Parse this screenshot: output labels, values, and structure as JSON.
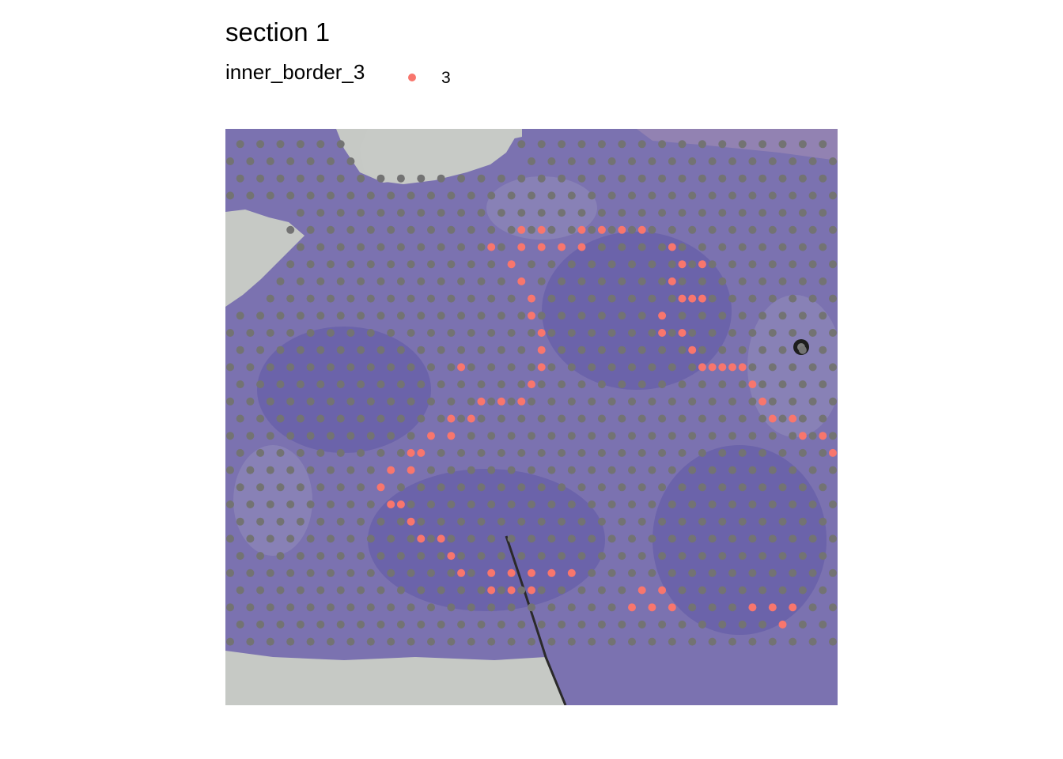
{
  "chart_data": {
    "type": "scatter",
    "title": "section 1",
    "legend": {
      "title": "inner_border_3",
      "entries": [
        {
          "label": "3",
          "color": "#F8766D"
        }
      ],
      "placement": "top-left"
    },
    "grid": false,
    "background": "tissue-image",
    "colors": {
      "tissue": "#7c73b0",
      "tissue_dark": "#5d55a8",
      "glass": "#c4c8c4",
      "background_spot": "#737373",
      "highlight_spot": "#F8766D"
    },
    "series": [
      {
        "name": "3",
        "points": [
          [
            -0.5,
            -6
          ],
          [
            0.5,
            -6
          ],
          [
            2.5,
            -6
          ],
          [
            3.5,
            -6
          ],
          [
            4.5,
            -6
          ],
          [
            5.5,
            -6
          ],
          [
            -2,
            -5
          ],
          [
            -0.5,
            -5
          ],
          [
            0.5,
            -5
          ],
          [
            1.5,
            -5
          ],
          [
            2.5,
            -5
          ],
          [
            7,
            -5
          ],
          [
            -1,
            -4
          ],
          [
            7.5,
            -4
          ],
          [
            8.5,
            -4
          ],
          [
            -0.5,
            -3
          ],
          [
            7,
            -3
          ],
          [
            0,
            -2
          ],
          [
            7.5,
            -2
          ],
          [
            8,
            -2
          ],
          [
            8.5,
            -2
          ],
          [
            0,
            -1
          ],
          [
            6.5,
            -1
          ],
          [
            0.5,
            0
          ],
          [
            6.5,
            0
          ],
          [
            7.5,
            0
          ],
          [
            0.5,
            1
          ],
          [
            8,
            1
          ],
          [
            -3.5,
            2
          ],
          [
            0.5,
            2
          ],
          [
            8.5,
            2
          ],
          [
            9,
            2
          ],
          [
            9.5,
            2
          ],
          [
            10,
            2
          ],
          [
            10.5,
            2
          ],
          [
            0,
            3
          ],
          [
            11,
            3
          ],
          [
            -2.5,
            4
          ],
          [
            -1.5,
            4
          ],
          [
            -0.5,
            4
          ],
          [
            11.5,
            4
          ],
          [
            -4,
            5
          ],
          [
            -3,
            5
          ],
          [
            12,
            5
          ],
          [
            13,
            5
          ],
          [
            -5,
            6
          ],
          [
            -4,
            6
          ],
          [
            13.5,
            6
          ],
          [
            14.5,
            6
          ],
          [
            -6,
            7
          ],
          [
            -5.5,
            7
          ],
          [
            15,
            7
          ],
          [
            16,
            7
          ],
          [
            -7,
            8
          ],
          [
            -6,
            8
          ],
          [
            -7.5,
            9
          ],
          [
            -7,
            10
          ],
          [
            -6.5,
            10
          ],
          [
            -6,
            11
          ],
          [
            -5.5,
            12
          ],
          [
            -4.5,
            12
          ],
          [
            -4,
            13
          ],
          [
            -3.5,
            14
          ],
          [
            -2,
            14
          ],
          [
            -1,
            14
          ],
          [
            0,
            14
          ],
          [
            1,
            14
          ],
          [
            2,
            14
          ],
          [
            -2,
            15
          ],
          [
            -1,
            15
          ],
          [
            0,
            15
          ],
          [
            5.5,
            15
          ],
          [
            6.5,
            15
          ],
          [
            5,
            16
          ],
          [
            6,
            16
          ],
          [
            7,
            16
          ],
          [
            11,
            16
          ],
          [
            12,
            16
          ],
          [
            13,
            16
          ],
          [
            12.5,
            17
          ]
        ]
      }
    ]
  }
}
